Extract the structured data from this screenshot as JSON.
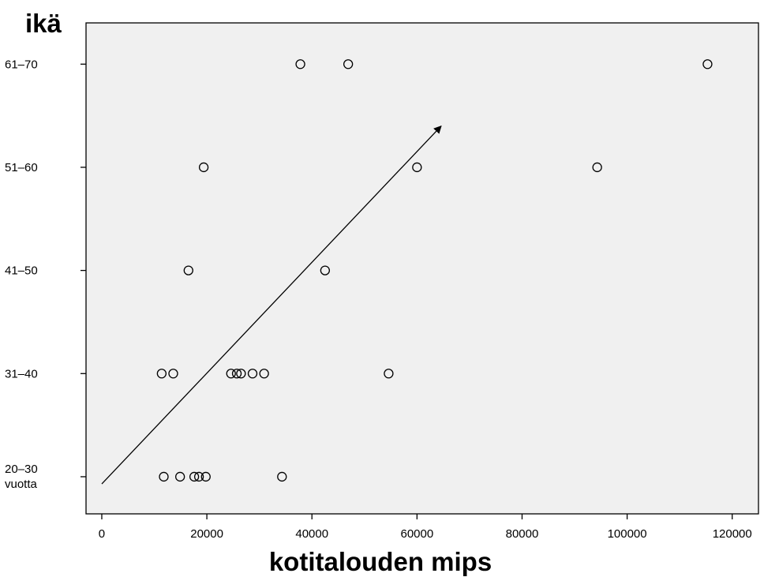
{
  "chart_data": {
    "type": "scatter",
    "title": "",
    "xlabel": "kotitalouden mips",
    "ylabel": "ikä",
    "xlim": [
      -3000,
      125000
    ],
    "ylim": [
      -0.36,
      4.4
    ],
    "x_ticks": [
      0,
      20000,
      40000,
      60000,
      80000,
      100000,
      120000
    ],
    "x_tick_labels": [
      "0",
      "20000",
      "40000",
      "60000",
      "80000",
      "100000",
      "120000"
    ],
    "y_categories": [
      {
        "value": 0,
        "label": "20–30",
        "label2": "vuotta"
      },
      {
        "value": 1,
        "label": "31–40",
        "label2": ""
      },
      {
        "value": 2,
        "label": "41–50",
        "label2": ""
      },
      {
        "value": 3,
        "label": "51–60",
        "label2": ""
      },
      {
        "value": 4,
        "label": "61–70",
        "label2": ""
      }
    ],
    "grid": false,
    "background": "#f0f0f0",
    "series": [
      {
        "points": [
          {
            "x": 37800,
            "y": 4
          },
          {
            "x": 46900,
            "y": 4
          },
          {
            "x": 115300,
            "y": 4
          },
          {
            "x": 19400,
            "y": 3
          },
          {
            "x": 60000,
            "y": 3
          },
          {
            "x": 94300,
            "y": 3
          },
          {
            "x": 16500,
            "y": 2
          },
          {
            "x": 42500,
            "y": 2
          },
          {
            "x": 11400,
            "y": 1
          },
          {
            "x": 13600,
            "y": 1
          },
          {
            "x": 24600,
            "y": 1
          },
          {
            "x": 25700,
            "y": 1
          },
          {
            "x": 26500,
            "y": 1
          },
          {
            "x": 28700,
            "y": 1
          },
          {
            "x": 30900,
            "y": 1
          },
          {
            "x": 54600,
            "y": 1
          },
          {
            "x": 11800,
            "y": 0
          },
          {
            "x": 14900,
            "y": 0
          },
          {
            "x": 17600,
            "y": 0
          },
          {
            "x": 18500,
            "y": 0
          },
          {
            "x": 19800,
            "y": 0
          },
          {
            "x": 34300,
            "y": 0
          }
        ]
      }
    ],
    "annotation": {
      "type": "arrow",
      "from": {
        "x": 0,
        "y": -0.07
      },
      "to": {
        "x": 64600,
        "y": 3.4
      }
    }
  }
}
